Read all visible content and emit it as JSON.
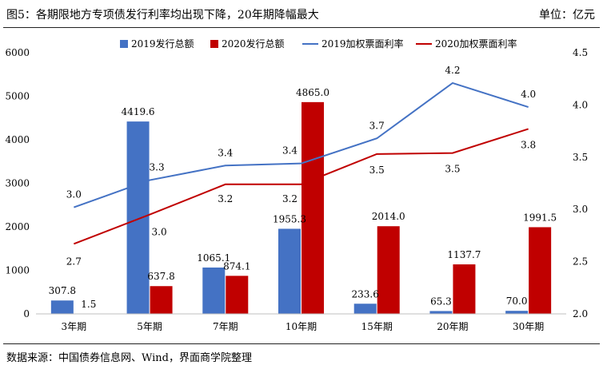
{
  "header": {
    "title": "图5：各期限地方专项债发行利率均出现下降，20年期降幅最大",
    "unit": "单位：亿元"
  },
  "footer": {
    "source": "数据来源：中国债券信息网、Wind，界面商学院整理"
  },
  "chart_data": {
    "type": "bar+line",
    "categories": [
      "3年期",
      "5年期",
      "7年期",
      "10年期",
      "15年期",
      "20年期",
      "30年期"
    ],
    "bar_series": [
      {
        "name": "2019发行总额",
        "color": "#4472C4",
        "axis": "left",
        "values": [
          307.8,
          4419.6,
          1065.1,
          1955.3,
          233.6,
          65.3,
          70.0
        ],
        "labels": [
          "307.8",
          "4419.6",
          "1065.1",
          "1955.3",
          "233.6",
          "65.3",
          "70.0"
        ]
      },
      {
        "name": "2020发行总额",
        "color": "#C00000",
        "axis": "left",
        "values": [
          1.5,
          637.8,
          874.1,
          4865.0,
          2014.0,
          1137.7,
          1991.5
        ],
        "labels": [
          "1.5",
          "637.8",
          "874.1",
          "4865.0",
          "2014.0",
          "1137.7",
          "1991.5"
        ]
      }
    ],
    "line_series": [
      {
        "name": "2019加权票面利率",
        "color": "#4472C4",
        "axis": "right",
        "values": [
          3.02,
          3.28,
          3.42,
          3.44,
          3.68,
          4.21,
          3.98
        ],
        "labels": [
          "3.0",
          "3.3",
          "3.4",
          "3.4",
          "3.7",
          "4.2",
          "4.0"
        ]
      },
      {
        "name": "2020加权票面利率",
        "color": "#C00000",
        "axis": "right",
        "values": [
          2.67,
          2.95,
          3.24,
          3.24,
          3.53,
          3.54,
          3.77
        ],
        "labels": [
          "2.7",
          "3.0",
          "3.2",
          "3.2",
          "3.5",
          "3.5",
          "3.8"
        ]
      }
    ],
    "y_left": {
      "min": 0,
      "max": 6000,
      "ticks": [
        "0",
        "1000",
        "2000",
        "3000",
        "4000",
        "5000",
        "6000"
      ]
    },
    "y_right": {
      "min": 2.0,
      "max": 4.5,
      "ticks": [
        "2.0",
        "2.5",
        "3.0",
        "3.5",
        "4.0",
        "4.5"
      ]
    },
    "legend": "top",
    "grid": false
  }
}
